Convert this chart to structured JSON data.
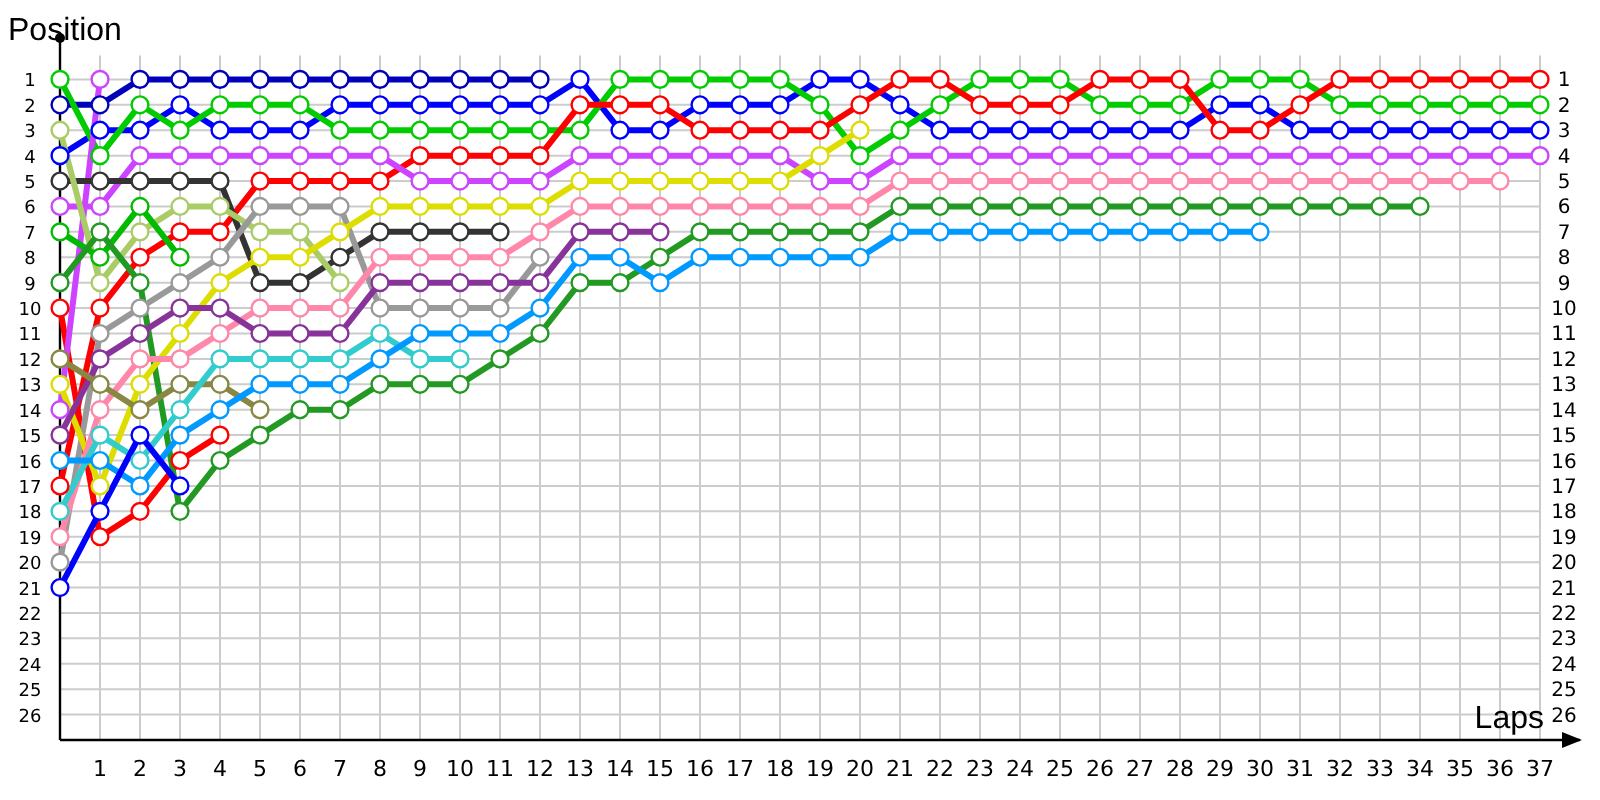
{
  "chart_data": {
    "type": "line",
    "xlabel": "Laps",
    "ylabel": "Position",
    "x": [
      0,
      1,
      2,
      3,
      4,
      5,
      6,
      7,
      8,
      9,
      10,
      11,
      12,
      13,
      14,
      15,
      16,
      17,
      18,
      19,
      20,
      21,
      22,
      23,
      24,
      25,
      26,
      27,
      28,
      29,
      30,
      31,
      32,
      33,
      34,
      35,
      36,
      37
    ],
    "xlim": [
      0,
      38
    ],
    "xticks": [
      1,
      2,
      3,
      4,
      5,
      6,
      7,
      8,
      9,
      10,
      11,
      12,
      13,
      14,
      15,
      16,
      17,
      18,
      19,
      20,
      21,
      22,
      23,
      24,
      25,
      26,
      27,
      28,
      29,
      30,
      31,
      32,
      33,
      34,
      35,
      36,
      37
    ],
    "ylim": [
      27,
      0
    ],
    "yticks": [
      1,
      2,
      3,
      4,
      5,
      6,
      7,
      8,
      9,
      10,
      11,
      12,
      13,
      14,
      15,
      16,
      17,
      18,
      19,
      20,
      21,
      22,
      23,
      24,
      25,
      26
    ],
    "y2lim": [
      27,
      0
    ],
    "y2ticks": [
      1,
      2,
      3,
      4,
      5,
      6,
      7,
      8,
      9,
      10,
      11,
      12,
      13,
      14,
      15,
      16,
      17,
      18,
      19,
      20,
      21,
      22,
      23,
      24,
      25,
      26
    ],
    "grid": true,
    "marker": "circle",
    "line_style": "solid",
    "series": [
      {
        "color": "#0000bb",
        "values": [
          2,
          2,
          1,
          1,
          1,
          1,
          1,
          1,
          1,
          1,
          1,
          1,
          1,
          null,
          null,
          null,
          null,
          null,
          null,
          null,
          null,
          null,
          null,
          null,
          null,
          null,
          null,
          null,
          null,
          null,
          null,
          null,
          null,
          null,
          null,
          null,
          null,
          null
        ]
      },
      {
        "color": "#0000ff",
        "values": [
          4,
          3,
          3,
          2,
          3,
          3,
          3,
          2,
          2,
          2,
          2,
          2,
          2,
          1,
          3,
          3,
          2,
          2,
          2,
          1,
          1,
          2,
          3,
          3,
          3,
          3,
          3,
          3,
          3,
          2,
          2,
          3,
          3,
          3,
          3,
          3,
          3,
          3
        ]
      },
      {
        "color": "#00cc00",
        "values": [
          1,
          4,
          2,
          3,
          2,
          2,
          2,
          3,
          3,
          3,
          3,
          3,
          3,
          3,
          1,
          1,
          1,
          1,
          1,
          2,
          4,
          3,
          2,
          1,
          1,
          1,
          2,
          2,
          2,
          1,
          1,
          1,
          2,
          2,
          2,
          2,
          2,
          2
        ]
      },
      {
        "color": "#ff0000",
        "values": [
          17,
          10,
          8,
          7,
          7,
          5,
          5,
          5,
          5,
          4,
          4,
          4,
          4,
          2,
          2,
          2,
          3,
          3,
          3,
          3,
          2,
          1,
          1,
          2,
          2,
          2,
          1,
          1,
          1,
          3,
          3,
          2,
          1,
          1,
          1,
          1,
          1,
          1
        ]
      },
      {
        "color": "#cc44ff",
        "values": [
          6,
          6,
          4,
          4,
          4,
          4,
          4,
          4,
          4,
          5,
          5,
          5,
          5,
          4,
          4,
          4,
          4,
          4,
          4,
          5,
          5,
          4,
          4,
          4,
          4,
          4,
          4,
          4,
          4,
          4,
          4,
          4,
          4,
          4,
          4,
          4,
          4,
          4
        ]
      },
      {
        "color": "#ff0000",
        "values": [
          10,
          19,
          18,
          16,
          15,
          null,
          null,
          null,
          null,
          null,
          null,
          null,
          null,
          null,
          null,
          null,
          null,
          null,
          null,
          null,
          null,
          null,
          null,
          null,
          null,
          null,
          null,
          null,
          null,
          null,
          null,
          null,
          null,
          null,
          null,
          null,
          null,
          null
        ]
      },
      {
        "color": "#cc44ff",
        "values": [
          14,
          1,
          null,
          null,
          null,
          null,
          null,
          null,
          null,
          null,
          null,
          null,
          null,
          null,
          null,
          null,
          null,
          null,
          null,
          null,
          null,
          null,
          null,
          null,
          null,
          null,
          null,
          null,
          null,
          null,
          null,
          null,
          null,
          null,
          null,
          null,
          null,
          null
        ]
      },
      {
        "color": "#333333",
        "values": [
          5,
          5,
          5,
          5,
          5,
          9,
          9,
          8,
          7,
          7,
          7,
          7,
          null,
          null,
          null,
          null,
          null,
          null,
          null,
          null,
          null,
          null,
          null,
          null,
          null,
          null,
          null,
          null,
          null,
          null,
          null,
          null,
          null,
          null,
          null,
          null,
          null,
          null
        ]
      },
      {
        "color": "#aacc66",
        "values": [
          3,
          9,
          7,
          6,
          6,
          7,
          7,
          9,
          null,
          null,
          null,
          null,
          null,
          null,
          null,
          null,
          null,
          null,
          null,
          null,
          null,
          null,
          null,
          null,
          null,
          null,
          null,
          null,
          null,
          null,
          null,
          null,
          null,
          null,
          null,
          null,
          null,
          null
        ]
      },
      {
        "color": "#00bb00",
        "values": [
          7,
          8,
          6,
          8,
          null,
          null,
          null,
          null,
          null,
          null,
          null,
          null,
          null,
          null,
          null,
          null,
          null,
          null,
          null,
          null,
          null,
          null,
          null,
          null,
          null,
          null,
          null,
          null,
          null,
          null,
          null,
          null,
          null,
          null,
          null,
          null,
          null,
          null
        ]
      },
      {
        "color": "#229922",
        "values": [
          9,
          7,
          9,
          18,
          16,
          15,
          14,
          14,
          13,
          13,
          13,
          12,
          11,
          9,
          9,
          8,
          7,
          7,
          7,
          7,
          7,
          6,
          6,
          6,
          6,
          6,
          6,
          6,
          6,
          6,
          6,
          6,
          6,
          6,
          6,
          null,
          null,
          null
        ]
      },
      {
        "color": "#999999",
        "values": [
          20,
          11,
          10,
          9,
          8,
          6,
          6,
          6,
          10,
          10,
          10,
          10,
          8,
          null,
          null,
          null,
          null,
          null,
          null,
          null,
          null,
          null,
          null,
          null,
          null,
          null,
          null,
          null,
          null,
          null,
          null,
          null,
          null,
          null,
          null,
          null,
          null,
          null
        ]
      },
      {
        "color": "#dddd00",
        "values": [
          13,
          17,
          13,
          11,
          9,
          8,
          8,
          7,
          6,
          6,
          6,
          6,
          6,
          5,
          5,
          5,
          5,
          5,
          5,
          4,
          3,
          null,
          null,
          null,
          null,
          null,
          null,
          null,
          null,
          null,
          null,
          null,
          null,
          null,
          null,
          null,
          null,
          null
        ]
      },
      {
        "color": "#ff88aa",
        "values": [
          19,
          14,
          12,
          12,
          11,
          10,
          10,
          10,
          8,
          8,
          8,
          8,
          7,
          6,
          6,
          6,
          6,
          6,
          6,
          6,
          6,
          5,
          5,
          5,
          5,
          5,
          5,
          5,
          5,
          5,
          5,
          5,
          5,
          5,
          5,
          5,
          5,
          null
        ]
      },
      {
        "color": "#883399",
        "values": [
          15,
          12,
          11,
          10,
          10,
          11,
          11,
          11,
          9,
          9,
          9,
          9,
          9,
          7,
          7,
          7,
          null,
          null,
          null,
          null,
          null,
          null,
          null,
          null,
          null,
          null,
          null,
          null,
          null,
          null,
          null,
          null,
          null,
          null,
          null,
          null,
          null,
          null
        ]
      },
      {
        "color": "#888844",
        "values": [
          12,
          13,
          14,
          13,
          13,
          14,
          null,
          null,
          null,
          null,
          null,
          null,
          null,
          null,
          null,
          null,
          null,
          null,
          null,
          null,
          null,
          null,
          null,
          null,
          null,
          null,
          null,
          null,
          null,
          null,
          null,
          null,
          null,
          null,
          null,
          null,
          null,
          null
        ]
      },
      {
        "color": "#33cccc",
        "values": [
          18,
          15,
          16,
          14,
          12,
          12,
          12,
          12,
          11,
          12,
          12,
          null,
          null,
          null,
          null,
          null,
          null,
          null,
          null,
          null,
          null,
          null,
          null,
          null,
          null,
          null,
          null,
          null,
          null,
          null,
          null,
          null,
          null,
          null,
          null,
          null,
          null,
          null
        ]
      },
      {
        "color": "#0099ff",
        "values": [
          16,
          16,
          17,
          15,
          14,
          13,
          13,
          13,
          12,
          11,
          11,
          11,
          10,
          8,
          8,
          9,
          8,
          8,
          8,
          8,
          8,
          7,
          7,
          7,
          7,
          7,
          7,
          7,
          7,
          7,
          7,
          null,
          null,
          null,
          null,
          null,
          null,
          null
        ]
      },
      {
        "color": "#0000ff",
        "values": [
          21,
          18,
          15,
          17,
          null,
          null,
          null,
          null,
          null,
          null,
          null,
          null,
          null,
          null,
          null,
          null,
          null,
          null,
          null,
          null,
          null,
          null,
          null,
          null,
          null,
          null,
          null,
          null,
          null,
          null,
          null,
          null,
          null,
          null,
          null,
          null,
          null,
          null
        ]
      }
    ]
  }
}
